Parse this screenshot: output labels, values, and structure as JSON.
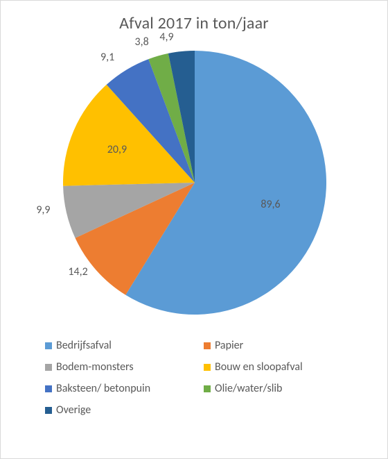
{
  "chart": {
    "type": "pie",
    "title": "Afval 2017 in ton/jaar",
    "title_fontsize": 24,
    "title_color": "#595959",
    "background_color": "#ffffff",
    "border_color": "#d9d9d9",
    "pie_radius": 190,
    "pie_start_angle_deg": -90,
    "label_fontsize": 16,
    "label_color": "#595959",
    "legend_fontsize": 16,
    "legend_color": "#595959",
    "swatch_size": 10,
    "series": [
      {
        "name": "Bedrijfsafval",
        "value": 89.6,
        "label": "89,6",
        "color": "#5b9bd5"
      },
      {
        "name": "Papier",
        "value": 14.2,
        "label": "14,2",
        "color": "#ed7d31"
      },
      {
        "name": "Bodem-monsters",
        "value": 9.9,
        "label": "9,9",
        "color": "#a5a5a5"
      },
      {
        "name": "Bouw en sloopafval",
        "value": 20.9,
        "label": "20,9",
        "color": "#ffc000"
      },
      {
        "name": "Baksteen/ betonpuin",
        "value": 9.1,
        "label": "9,1",
        "color": "#4472c4"
      },
      {
        "name": "Olie/water/slib",
        "value": 3.8,
        "label": "3,8",
        "color": "#70ad47"
      },
      {
        "name": "Overige",
        "value": 4.9,
        "label": "4,9",
        "color": "#255e91"
      }
    ]
  }
}
